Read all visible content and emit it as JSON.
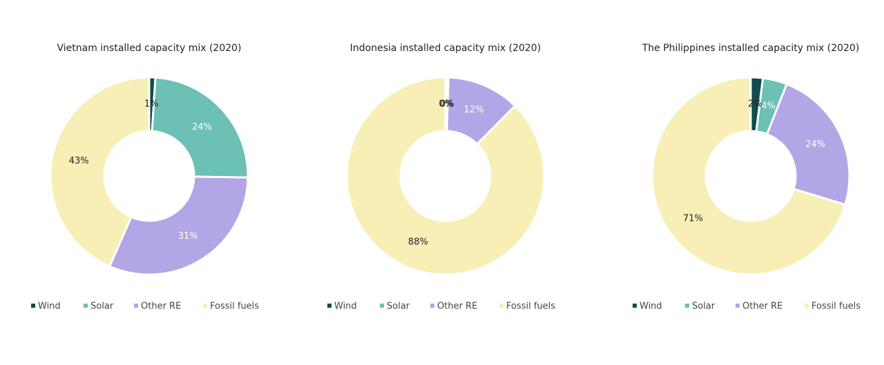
{
  "chart_data": [
    {
      "type": "pie",
      "title": "Vietnam installed capacity mix (2020)",
      "categories": [
        "Wind",
        "Solar",
        "Other RE",
        "Fossil fuels"
      ],
      "values": [
        1,
        24,
        31,
        43
      ],
      "value_labels": [
        "1%",
        "24%",
        "31%",
        "43%"
      ],
      "colors": [
        "#0f4c4f",
        "#6cc0b4",
        "#b3a6e6",
        "#f8efb6"
      ]
    },
    {
      "type": "pie",
      "title": "Indonesia installed capacity mix (2020)",
      "categories": [
        "Wind",
        "Solar",
        "Other RE",
        "Fossil fuels"
      ],
      "values": [
        0.2,
        0.3,
        12,
        88
      ],
      "value_labels": [
        "0%",
        "0%",
        "12%",
        "88%"
      ],
      "colors": [
        "#0f4c4f",
        "#6cc0b4",
        "#b3a6e6",
        "#f8efb6"
      ]
    },
    {
      "type": "pie",
      "title": "The Philippines installed capacity mix (2020)",
      "categories": [
        "Wind",
        "Solar",
        "Other RE",
        "Fossil fuels"
      ],
      "values": [
        2,
        4,
        24,
        71
      ],
      "value_labels": [
        "2%",
        "4%",
        "24%",
        "71%"
      ],
      "colors": [
        "#0f4c4f",
        "#6cc0b4",
        "#b3a6e6",
        "#f8efb6"
      ]
    }
  ]
}
